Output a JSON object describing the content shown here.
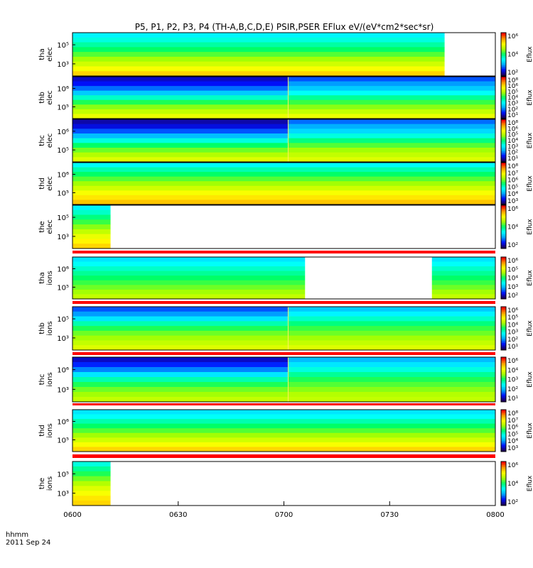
{
  "chart_data": {
    "type": "heatmap",
    "title": "P5, P1, P2, P3, P4 (TH-A,B,C,D,E) PSIR,PSER EFlux eV/(eV*cm2*sec*sr)",
    "date": "2011 Sep 24",
    "time_label": "hhmm",
    "x_ticks": [
      "0600",
      "0630",
      "0700",
      "0730",
      "0800"
    ],
    "colorbar_label": "Eflux",
    "colormap": [
      "#1b005a",
      "#0011ff",
      "#00aaff",
      "#00ffff",
      "#00ff66",
      "#aaff00",
      "#ffff00",
      "#ff9900",
      "#ff0000"
    ],
    "panels": [
      {
        "id": "tha-elec",
        "probe": "tha",
        "species": "elec",
        "ylabel": "tha\nelec",
        "ytick_exps": [
          5,
          3
        ],
        "data_end_frac": 0.88,
        "transition_frac": null,
        "levels_top": [
          0.36,
          0.4,
          0.45,
          0.5,
          0.56,
          0.62,
          0.68,
          0.74,
          0.8
        ],
        "levels_bottom": [
          0.4,
          0.44,
          0.49,
          0.54,
          0.6,
          0.66,
          0.72,
          0.78,
          0.84
        ],
        "cbar_exps": [
          6,
          4,
          2
        ],
        "cbar_label": "Eflux"
      },
      {
        "id": "thb-elec",
        "probe": "thb",
        "species": "elec",
        "ylabel": "thb\nelec",
        "ytick_exps": [
          6,
          5
        ],
        "data_end_frac": 1.0,
        "transition_frac": 0.51,
        "levels_top": [
          0.08,
          0.12,
          0.2,
          0.3,
          0.42,
          0.52,
          0.6,
          0.66,
          0.72
        ],
        "levels_bottom": [
          0.18,
          0.24,
          0.3,
          0.38,
          0.46,
          0.54,
          0.6,
          0.66,
          0.72
        ],
        "cbar_exps": [
          8,
          6,
          5,
          4,
          3,
          2,
          1
        ],
        "cbar_label": "Eflux"
      },
      {
        "id": "thc-elec",
        "probe": "thc",
        "species": "elec",
        "ylabel": "thc\nelec",
        "ytick_exps": [
          6,
          5
        ],
        "data_end_frac": 1.0,
        "transition_frac": 0.51,
        "levels_top": [
          0.06,
          0.1,
          0.18,
          0.28,
          0.4,
          0.5,
          0.58,
          0.64,
          0.7
        ],
        "levels_bottom": [
          0.2,
          0.26,
          0.32,
          0.4,
          0.48,
          0.56,
          0.62,
          0.66,
          0.7
        ],
        "cbar_exps": [
          8,
          6,
          5,
          4,
          3,
          2,
          1
        ],
        "cbar_label": "Eflux"
      },
      {
        "id": "thd-elec",
        "probe": "thd",
        "species": "elec",
        "ylabel": "thd\nelec",
        "ytick_exps": [
          6,
          5
        ],
        "data_end_frac": 1.0,
        "transition_frac": null,
        "levels_top": [
          0.38,
          0.44,
          0.5,
          0.56,
          0.62,
          0.68,
          0.74,
          0.78,
          0.82
        ],
        "levels_bottom": [
          0.42,
          0.48,
          0.54,
          0.6,
          0.66,
          0.72,
          0.78,
          0.84,
          0.88
        ],
        "cbar_exps": [
          8,
          7,
          6,
          5,
          4,
          3
        ],
        "cbar_label": "Eflux"
      },
      {
        "id": "the-elec",
        "probe": "the",
        "species": "elec",
        "ylabel": "the\nelec",
        "ytick_exps": [
          5,
          3
        ],
        "data_end_frac": 0.09,
        "transition_frac": null,
        "levels_top": [
          0.36,
          0.42,
          0.48,
          0.54,
          0.6,
          0.66,
          0.72,
          0.76,
          0.8
        ],
        "levels_bottom": [
          0.36,
          0.42,
          0.48,
          0.54,
          0.6,
          0.66,
          0.72,
          0.76,
          0.8
        ],
        "cbar_exps": [
          6,
          4,
          2
        ],
        "cbar_label": "Eflux"
      },
      {
        "id": "tha-ions",
        "probe": "tha",
        "species": "ions",
        "ylabel": "tha\nions",
        "ytick_exps": [
          6,
          5
        ],
        "data_end_frac": 1.0,
        "transition_frac": null,
        "gap": [
          0.55,
          0.85
        ],
        "levels_top": [
          0.34,
          0.38,
          0.42,
          0.46,
          0.5,
          0.54,
          0.58,
          0.62,
          0.66
        ],
        "levels_bottom": [
          0.34,
          0.38,
          0.42,
          0.46,
          0.5,
          0.54,
          0.58,
          0.62,
          0.66
        ],
        "cbar_exps": [
          6,
          5,
          4,
          3,
          2
        ],
        "cbar_label": "Eflux"
      },
      {
        "id": "thb-ions",
        "probe": "thb",
        "species": "ions",
        "ylabel": "thb\nions",
        "ytick_exps": [
          5,
          3
        ],
        "data_end_frac": 1.0,
        "transition_frac": 0.51,
        "levels_top": [
          0.18,
          0.24,
          0.34,
          0.44,
          0.52,
          0.58,
          0.62,
          0.66,
          0.7
        ],
        "levels_bottom": [
          0.3,
          0.36,
          0.42,
          0.48,
          0.54,
          0.58,
          0.62,
          0.66,
          0.7
        ],
        "cbar_exps": [
          6,
          5,
          4,
          3,
          2,
          1
        ],
        "cbar_label": "Eflux"
      },
      {
        "id": "thc-ions",
        "probe": "thc",
        "species": "ions",
        "ylabel": "thc\nions",
        "ytick_exps": [
          6,
          3
        ],
        "data_end_frac": 1.0,
        "transition_frac": 0.51,
        "levels_top": [
          0.08,
          0.14,
          0.22,
          0.34,
          0.44,
          0.52,
          0.58,
          0.62,
          0.66
        ],
        "levels_bottom": [
          0.28,
          0.34,
          0.4,
          0.46,
          0.52,
          0.56,
          0.6,
          0.64,
          0.66
        ],
        "cbar_exps": [
          6,
          4,
          3,
          2,
          1
        ],
        "cbar_label": "Eflux"
      },
      {
        "id": "thd-ions",
        "probe": "thd",
        "species": "ions",
        "ylabel": "thd\nions",
        "ytick_exps": [
          6,
          5
        ],
        "data_end_frac": 1.0,
        "transition_frac": null,
        "levels_top": [
          0.34,
          0.38,
          0.44,
          0.5,
          0.56,
          0.62,
          0.68,
          0.74,
          0.8
        ],
        "levels_bottom": [
          0.34,
          0.38,
          0.44,
          0.5,
          0.56,
          0.62,
          0.68,
          0.74,
          0.8
        ],
        "cbar_exps": [
          8,
          7,
          6,
          5,
          4,
          3
        ],
        "cbar_label": "Eflux"
      },
      {
        "id": "the-ions",
        "probe": "the",
        "species": "ions",
        "ylabel": "the\nions",
        "ytick_exps": [
          5,
          3
        ],
        "data_end_frac": 0.09,
        "transition_frac": null,
        "levels_top": [
          0.4,
          0.46,
          0.52,
          0.58,
          0.64,
          0.7,
          0.74,
          0.78,
          0.8
        ],
        "levels_bottom": [
          0.4,
          0.46,
          0.52,
          0.58,
          0.64,
          0.7,
          0.74,
          0.78,
          0.8
        ],
        "cbar_exps": [
          6,
          4,
          2
        ],
        "cbar_label": "Eflux"
      }
    ]
  }
}
